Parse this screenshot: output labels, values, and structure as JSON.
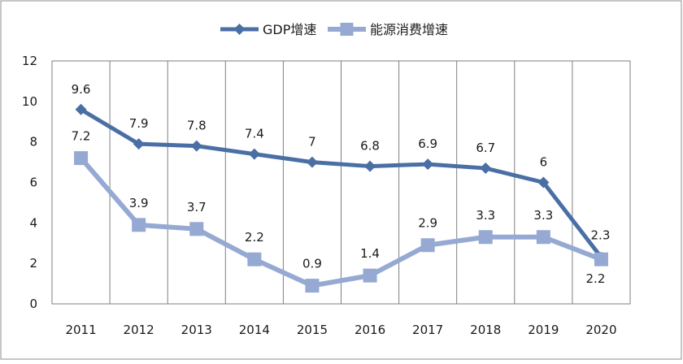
{
  "chart_data": {
    "type": "line",
    "categories": [
      "2011",
      "2012",
      "2013",
      "2014",
      "2015",
      "2016",
      "2017",
      "2018",
      "2019",
      "2020"
    ],
    "series": [
      {
        "name": "GDP增速",
        "values": [
          9.6,
          7.9,
          7.8,
          7.4,
          7,
          6.8,
          6.9,
          6.7,
          6,
          2.3
        ],
        "labels": [
          "9.6",
          "7.9",
          "7.8",
          "7.4",
          "7",
          "6.8",
          "6.9",
          "6.7",
          "6",
          "2.3"
        ],
        "color": "#4a6fa5",
        "marker": "diamond"
      },
      {
        "name": "能源消费增速",
        "values": [
          7.2,
          3.9,
          3.7,
          2.2,
          0.9,
          1.4,
          2.9,
          3.3,
          3.3,
          2.2
        ],
        "labels": [
          "7.2",
          "3.9",
          "3.7",
          "2.2",
          "0.9",
          "1.4",
          "2.9",
          "3.3",
          "3.3",
          "2.2"
        ],
        "color": "#95a9d3",
        "marker": "square"
      }
    ],
    "yticks": [
      "0",
      "2",
      "4",
      "6",
      "8",
      "10",
      "12"
    ],
    "ylim": [
      0,
      12
    ],
    "grid": "vertical category lines",
    "legend": "top-center"
  }
}
